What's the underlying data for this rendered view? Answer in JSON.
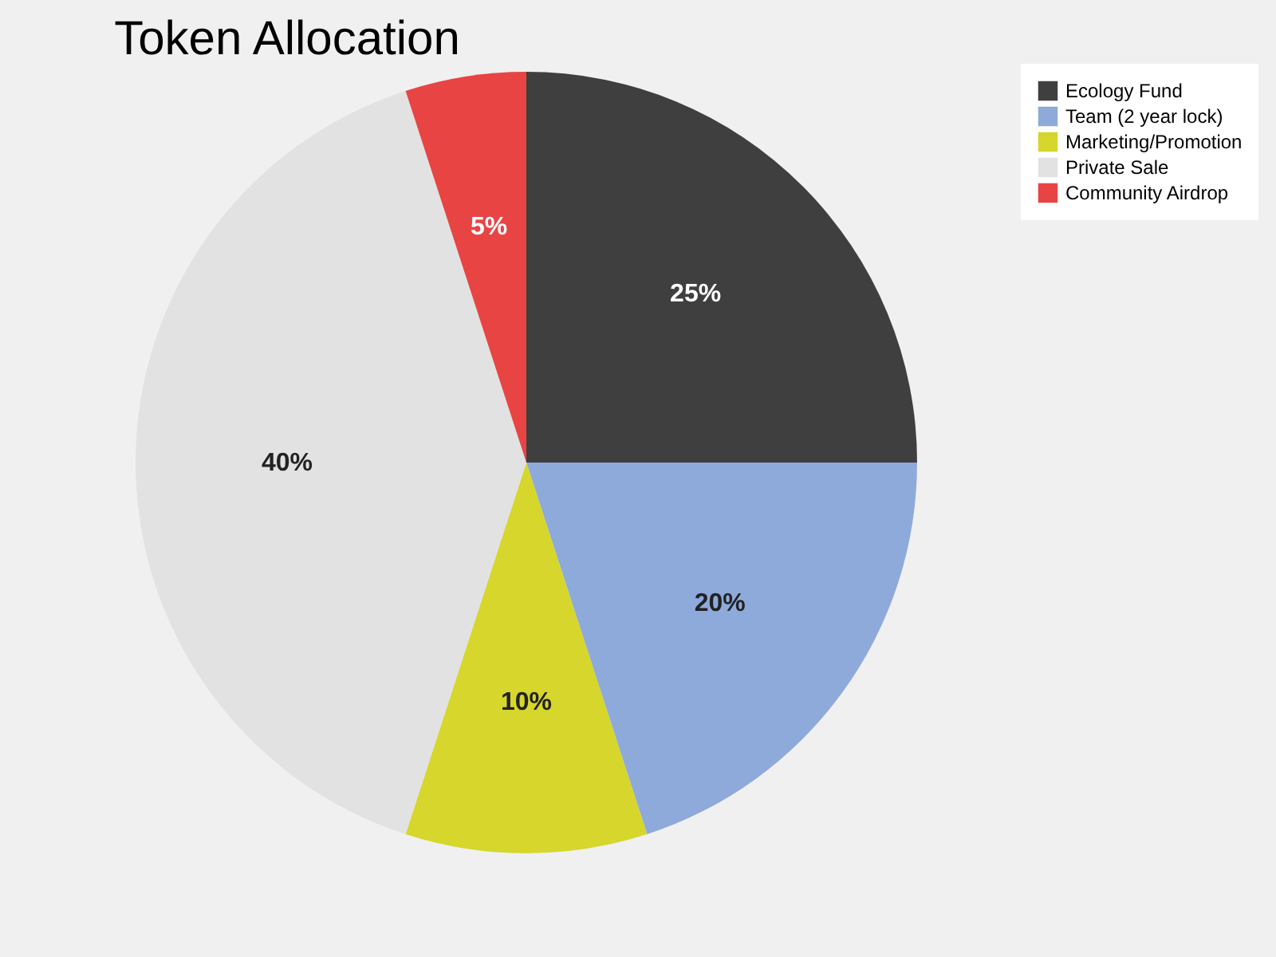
{
  "chart_data": {
    "type": "pie",
    "title": "Token Allocation",
    "categories": [
      "Ecology Fund",
      "Team (2 year lock)",
      "Marketing/Promotion",
      "Private Sale",
      "Community Airdrop"
    ],
    "values": [
      25,
      20,
      10,
      40,
      5
    ],
    "value_labels": [
      "25%",
      "20%",
      "10%",
      "40%",
      "5%"
    ],
    "colors": [
      "#3f3f3f",
      "#8eaadb",
      "#d6d62c",
      "#e2e2e2",
      "#e84444"
    ],
    "legend": "right"
  }
}
